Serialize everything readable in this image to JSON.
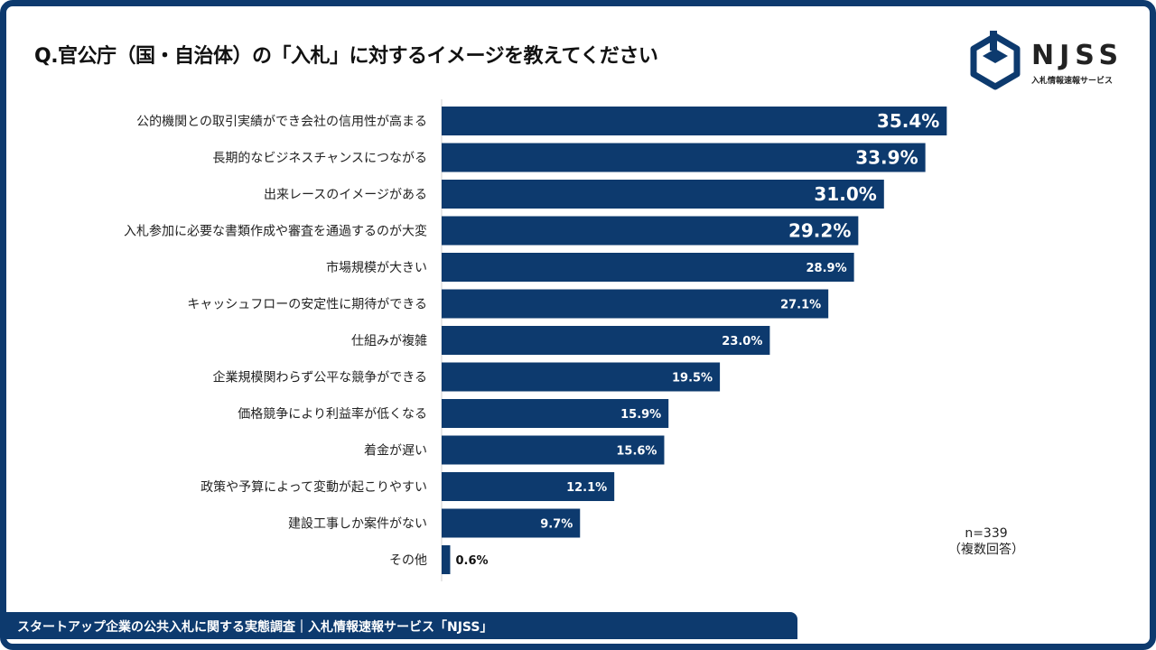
{
  "title": "Q.官公庁（国・自治体）の「入札」に対するイメージを教えてください",
  "logo": {
    "name": "NJSS",
    "subtitle": "入札情報速報サービス",
    "color": "#0d3a6e"
  },
  "note": {
    "n": "n=339",
    "type": "（複数回答）"
  },
  "footer": {
    "text": "スタートアップ企業の公共入札に関する実態調査｜入札情報速報サービス「NJSS」"
  },
  "colors": {
    "bar": "#0d3a6e",
    "accent": "#0d3a6e"
  },
  "chart_data": {
    "type": "bar",
    "orientation": "horizontal",
    "title": "Q.官公庁（国・自治体）の「入札」に対するイメージを教えてください",
    "unit": "%",
    "categories": [
      "公的機関との取引実績ができ会社の信用性が高まる",
      "長期的なビジネスチャンスにつながる",
      "出来レースのイメージがある",
      "入札参加に必要な書類作成や審査を通過するのが大変",
      "市場規模が大きい",
      "キャッシュフローの安定性に期待ができる",
      "仕組みが複雑",
      "企業規模関わらず公平な競争ができる",
      "価格競争により利益率が低くなる",
      "着金が遅い",
      "政策や予算によって変動が起こりやすい",
      "建設工事しか案件がない",
      "その他"
    ],
    "values": [
      35.4,
      33.9,
      31.0,
      29.2,
      28.9,
      27.1,
      23.0,
      19.5,
      15.9,
      15.6,
      12.1,
      9.7,
      0.6
    ],
    "value_labels": [
      "35.4%",
      "33.9%",
      "31.0%",
      "29.2%",
      "28.9%",
      "27.1%",
      "23.0%",
      "19.5%",
      "15.9%",
      "15.6%",
      "12.1%",
      "9.7%",
      "0.6%"
    ],
    "xlim": [
      0,
      40
    ]
  }
}
